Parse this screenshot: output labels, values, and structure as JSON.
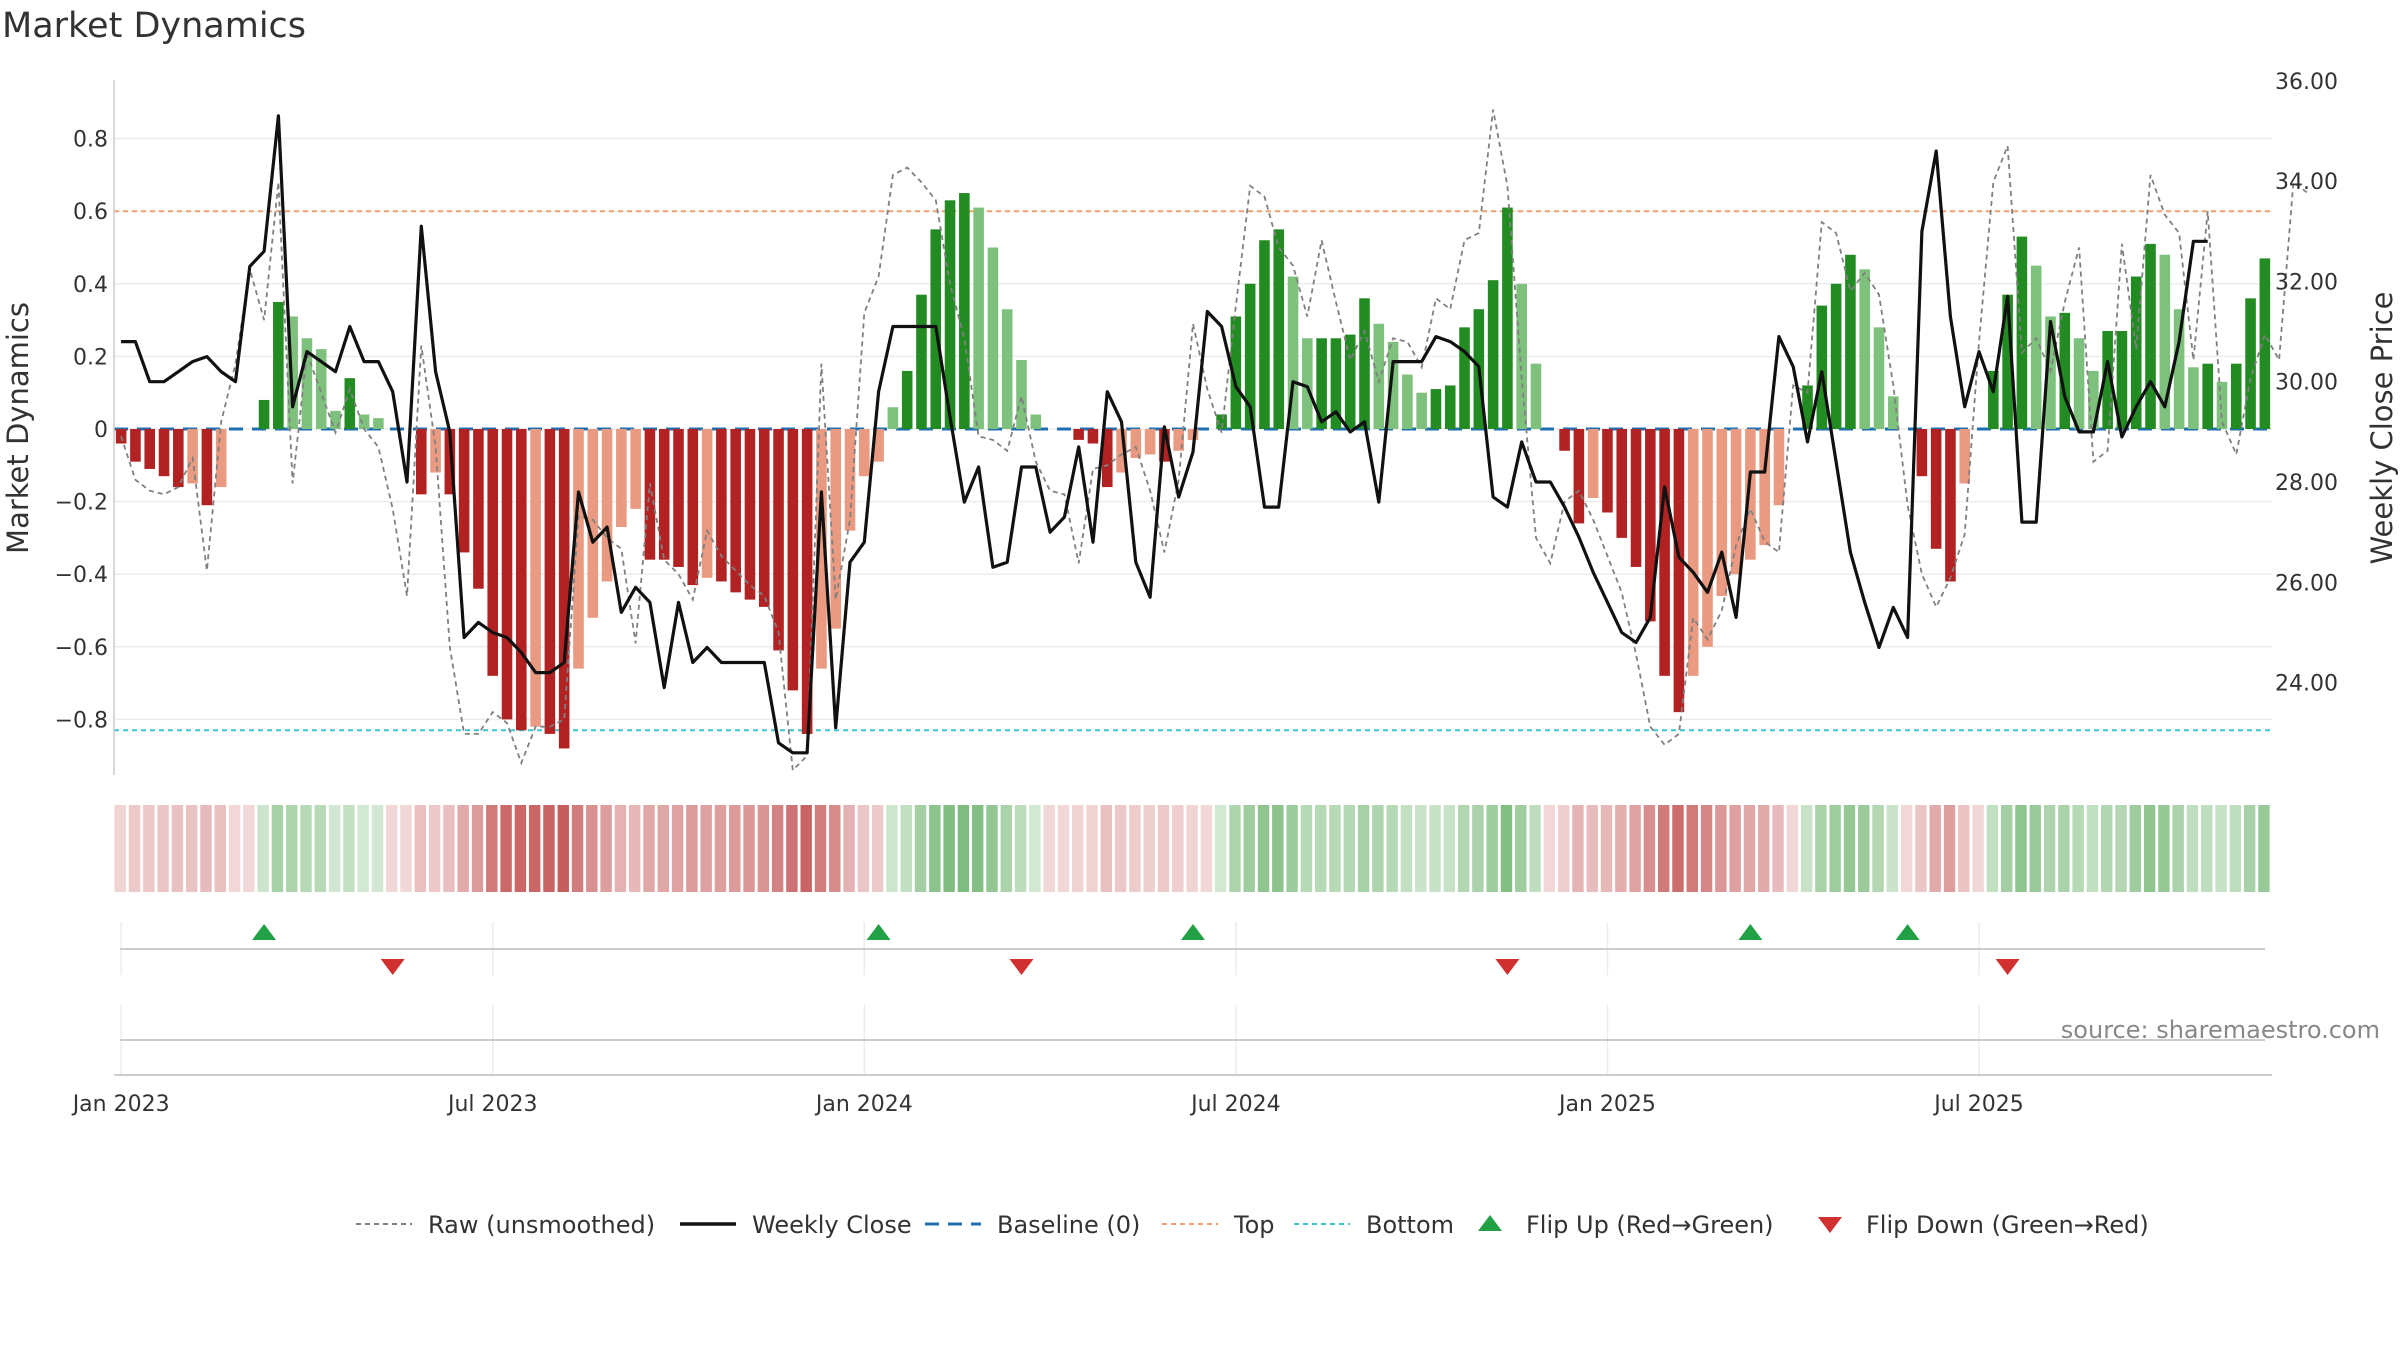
{
  "title": "Market Dynamics",
  "source": "source: sharemaestro.com",
  "colors": {
    "green_strong": "#228b22",
    "green_light": "#7dc17d",
    "red_strong": "#b22222",
    "red_light": "#e99a80",
    "raw": "#808080",
    "close": "#111111",
    "baseline": "#1f6fb0",
    "top": "#f0a070",
    "bottom": "#3cc4d0",
    "flip_up": "#22a045",
    "flip_down": "#d03030"
  },
  "chart_data": {
    "type": "bar",
    "title": "Market Dynamics",
    "ylabel": "Market Dynamics",
    "y2label": "Weekly Close Price",
    "ylim": [
      -0.95,
      0.95
    ],
    "y2lim": [
      22.25,
      36.6
    ],
    "yticks": [
      -0.8,
      -0.6,
      -0.4,
      -0.2,
      0,
      0.2,
      0.4,
      0.6,
      0.8
    ],
    "ytick_labels": [
      "−0.8",
      "−0.6",
      "−0.4",
      "−0.2",
      "0",
      "0.2",
      "0.4",
      "0.6",
      "0.8"
    ],
    "y2ticks": [
      24,
      26,
      28,
      30,
      32,
      34,
      36
    ],
    "y2tick_labels": [
      "24.00",
      "26.00",
      "28.00",
      "30.00",
      "32.00",
      "34.00",
      "36.00"
    ],
    "xticks": [
      {
        "week": 1,
        "label": "Jan 2023"
      },
      {
        "week": 27,
        "label": "Jul 2023"
      },
      {
        "week": 53,
        "label": "Jan 2024"
      },
      {
        "week": 79,
        "label": "Jul 2024"
      },
      {
        "week": 105,
        "label": "Jan 2025"
      },
      {
        "week": 131,
        "label": "Jul 2025"
      }
    ],
    "top_line": 0.6,
    "bottom_line": -0.83,
    "momentum": [
      -0.04,
      -0.09,
      -0.11,
      -0.13,
      -0.16,
      -0.15,
      -0.21,
      -0.16,
      0,
      0,
      0.08,
      0.35,
      0.31,
      0.25,
      0.22,
      0.05,
      0.14,
      0.04,
      0.03,
      0,
      0,
      -0.18,
      -0.12,
      -0.18,
      -0.34,
      -0.44,
      -0.68,
      -0.8,
      -0.83,
      -0.82,
      -0.84,
      -0.88,
      -0.66,
      -0.52,
      -0.42,
      -0.27,
      -0.22,
      -0.36,
      -0.36,
      -0.38,
      -0.43,
      -0.41,
      -0.42,
      -0.45,
      -0.47,
      -0.49,
      -0.61,
      -0.72,
      -0.84,
      -0.66,
      -0.55,
      -0.28,
      -0.13,
      -0.09,
      0.06,
      0.16,
      0.37,
      0.55,
      0.63,
      0.65,
      0.61,
      0.5,
      0.33,
      0.19,
      0.04,
      0,
      0,
      -0.03,
      -0.04,
      -0.16,
      -0.12,
      -0.08,
      -0.07,
      -0.09,
      -0.06,
      -0.03,
      0,
      0.04,
      0.31,
      0.4,
      0.52,
      0.55,
      0.42,
      0.25,
      0.25,
      0.25,
      0.26,
      0.36,
      0.29,
      0.24,
      0.15,
      0.1,
      0.11,
      0.12,
      0.28,
      0.33,
      0.41,
      0.61,
      0.4,
      0.18,
      0,
      -0.06,
      -0.26,
      -0.19,
      -0.23,
      -0.3,
      -0.38,
      -0.53,
      -0.68,
      -0.78,
      -0.68,
      -0.6,
      -0.46,
      -0.4,
      -0.36,
      -0.32,
      -0.21,
      0,
      0.12,
      0.34,
      0.4,
      0.48,
      0.44,
      0.28,
      0.09,
      0,
      -0.13,
      -0.33,
      -0.42,
      -0.15,
      0,
      0.16,
      0.37,
      0.53,
      0.45,
      0.31,
      0.32,
      0.25,
      0.16,
      0.27,
      0.27,
      0.42,
      0.51,
      0.48,
      0.33,
      0.17,
      0.18,
      0.13,
      0.18,
      0.36,
      0.47
    ],
    "raw": [
      -0.02,
      -0.14,
      -0.17,
      -0.18,
      -0.16,
      -0.08,
      -0.39,
      0.02,
      0.18,
      0.44,
      0.3,
      0.68,
      -0.15,
      0.21,
      0.1,
      -0.01,
      0.11,
      0,
      -0.05,
      -0.22,
      -0.46,
      0.23,
      -0.05,
      -0.6,
      -0.84,
      -0.84,
      -0.78,
      -0.81,
      -0.92,
      -0.82,
      -0.82,
      -0.8,
      -0.24,
      -0.25,
      -0.3,
      -0.33,
      -0.59,
      -0.15,
      -0.36,
      -0.4,
      -0.47,
      -0.28,
      -0.35,
      -0.39,
      -0.43,
      -0.46,
      -0.56,
      -0.94,
      -0.9,
      0.18,
      -0.47,
      -0.25,
      0.32,
      0.42,
      0.7,
      0.72,
      0.68,
      0.63,
      0.4,
      0.25,
      -0.02,
      -0.03,
      -0.06,
      0.09,
      -0.09,
      -0.17,
      -0.18,
      -0.37,
      -0.11,
      -0.1,
      -0.07,
      -0.05,
      -0.17,
      -0.34,
      -0.14,
      0.29,
      0.11,
      -0.01,
      0.34,
      0.67,
      0.64,
      0.5,
      0.45,
      0.31,
      0.52,
      0.35,
      0.19,
      0.27,
      0.13,
      0.25,
      0.24,
      0.17,
      0.36,
      0.33,
      0.52,
      0.54,
      0.88,
      0.67,
      0.14,
      -0.3,
      -0.37,
      -0.2,
      -0.17,
      -0.25,
      -0.35,
      -0.45,
      -0.62,
      -0.82,
      -0.87,
      -0.84,
      -0.52,
      -0.58,
      -0.5,
      -0.32,
      -0.22,
      -0.31,
      -0.34,
      0.12,
      0.1,
      0.57,
      0.54,
      0.38,
      0.43,
      0.37,
      0.12,
      -0.21,
      -0.4,
      -0.49,
      -0.41,
      -0.29,
      0.24,
      0.68,
      0.78,
      0.21,
      0.25,
      0.16,
      0.35,
      0.5,
      -0.09,
      -0.06,
      0.51,
      0.22,
      0.7,
      0.59,
      0.54,
      0.19,
      0.6,
      0.02,
      -0.07,
      0.14,
      0.26,
      0.19,
      0.68,
      0.65
    ],
    "close": [
      30.8,
      30.8,
      30.0,
      30.0,
      30.2,
      30.4,
      30.5,
      30.2,
      30.0,
      32.3,
      32.6,
      35.3,
      29.5,
      30.6,
      30.4,
      30.2,
      31.1,
      30.4,
      30.4,
      29.8,
      28.0,
      33.1,
      30.2,
      29.0,
      24.9,
      25.2,
      25.0,
      24.9,
      24.6,
      24.2,
      24.2,
      24.4,
      27.8,
      26.8,
      27.1,
      25.4,
      25.9,
      25.6,
      23.9,
      25.6,
      24.4,
      24.7,
      24.4,
      24.4,
      24.4,
      24.4,
      22.8,
      22.6,
      22.6,
      27.8,
      23.1,
      26.4,
      26.8,
      29.8,
      31.1,
      31.1,
      31.1,
      31.1,
      29.3,
      27.6,
      28.3,
      26.3,
      26.4,
      28.3,
      28.3,
      27.0,
      27.3,
      28.7,
      26.8,
      29.8,
      29.2,
      26.4,
      25.7,
      29.1,
      27.7,
      28.6,
      31.4,
      31.1,
      29.9,
      29.5,
      27.5,
      27.5,
      30.0,
      29.9,
      29.2,
      29.4,
      29.0,
      29.2,
      27.6,
      30.4,
      30.4,
      30.4,
      30.9,
      30.8,
      30.6,
      30.3,
      27.7,
      27.5,
      28.8,
      28.0,
      28.0,
      27.5,
      26.9,
      26.2,
      25.6,
      25.0,
      24.8,
      25.3,
      27.9,
      26.5,
      26.2,
      25.8,
      26.6,
      25.3,
      28.2,
      28.2,
      30.9,
      30.3,
      28.8,
      30.2,
      28.4,
      26.6,
      25.6,
      24.7,
      25.5,
      24.9,
      33.0,
      34.6,
      31.3,
      29.5,
      30.6,
      29.8,
      31.7,
      27.2,
      27.2,
      31.2,
      29.7,
      29.0,
      29.0,
      30.4,
      28.9,
      29.5,
      30.0,
      29.5,
      30.8,
      32.8,
      32.8
    ],
    "flip_up_weeks": [
      11,
      54,
      76,
      115,
      126
    ],
    "flip_down_weeks": [
      20,
      64,
      98,
      133
    ],
    "legend": [
      "Raw (unsmoothed)",
      "Weekly Close",
      "Baseline (0)",
      "Top",
      "Bottom",
      "Flip Up (Red→Green)",
      "Flip Down (Green→Red)"
    ]
  }
}
